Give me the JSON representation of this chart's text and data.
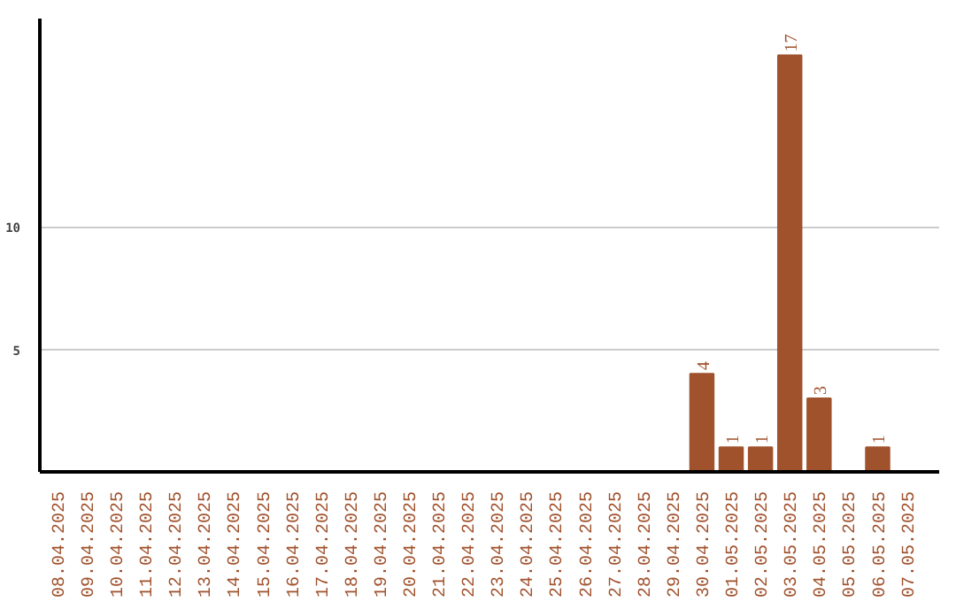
{
  "chart_data": {
    "type": "bar",
    "categories": [
      "08.04.2025",
      "09.04.2025",
      "10.04.2025",
      "11.04.2025",
      "12.04.2025",
      "13.04.2025",
      "14.04.2025",
      "15.04.2025",
      "16.04.2025",
      "17.04.2025",
      "18.04.2025",
      "19.04.2025",
      "20.04.2025",
      "21.04.2025",
      "22.04.2025",
      "23.04.2025",
      "24.04.2025",
      "25.04.2025",
      "26.04.2025",
      "27.04.2025",
      "28.04.2025",
      "29.04.2025",
      "30.04.2025",
      "01.05.2025",
      "02.05.2025",
      "03.05.2025",
      "04.05.2025",
      "05.05.2025",
      "06.05.2025",
      "07.05.2025"
    ],
    "values": [
      0,
      0,
      0,
      0,
      0,
      0,
      0,
      0,
      0,
      0,
      0,
      0,
      0,
      0,
      0,
      0,
      0,
      0,
      0,
      0,
      0,
      0,
      4,
      1,
      1,
      17,
      3,
      0,
      1,
      0
    ],
    "value_labels": [
      null,
      null,
      null,
      null,
      null,
      null,
      null,
      null,
      null,
      null,
      null,
      null,
      null,
      null,
      null,
      null,
      null,
      null,
      null,
      null,
      null,
      null,
      "4",
      "1",
      "1",
      "17",
      "3",
      null,
      "1",
      null
    ],
    "color": "#a0522d",
    "ylim": [
      0,
      18.5
    ],
    "yticks": [
      5,
      10
    ],
    "grid": "y"
  }
}
